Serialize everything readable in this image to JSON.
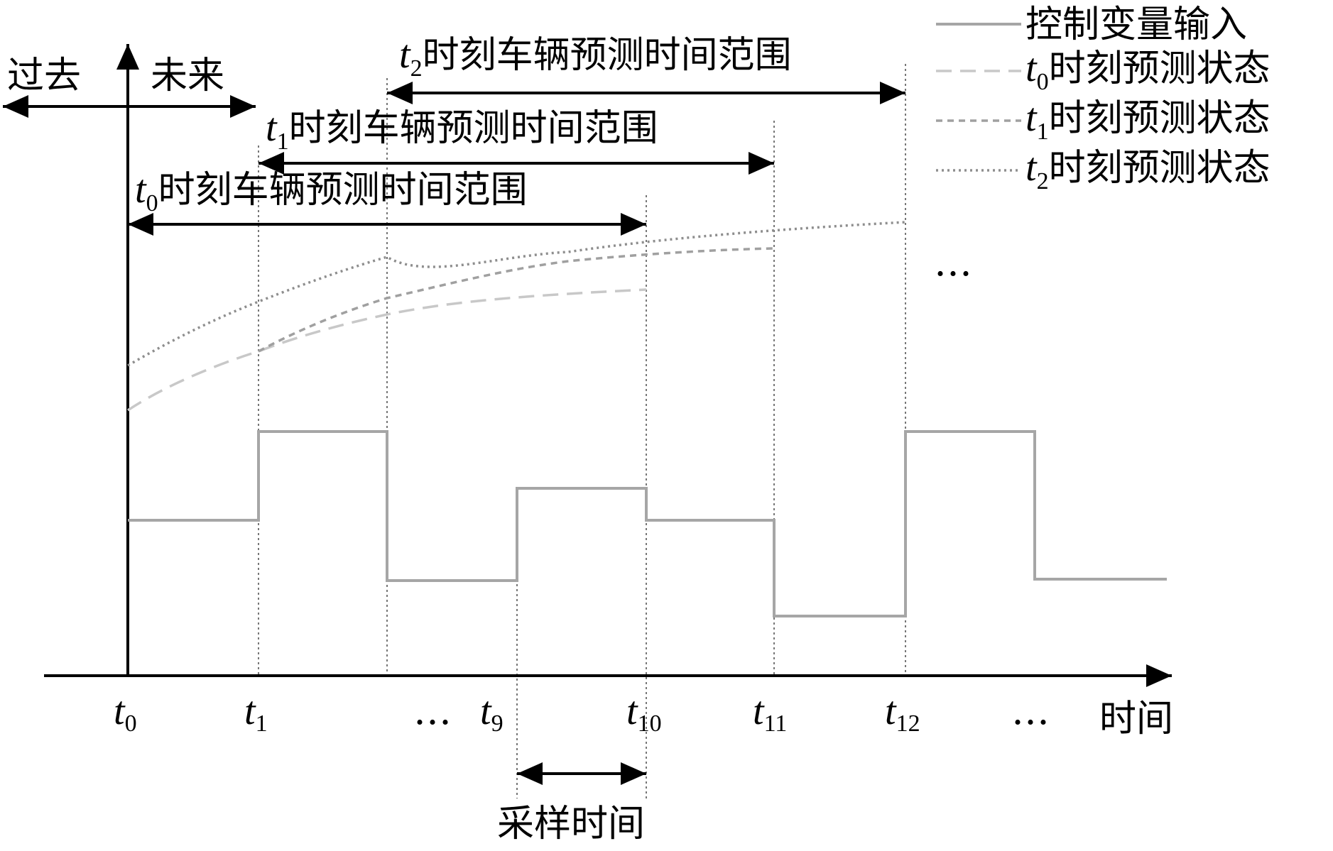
{
  "labels": {
    "past": "过去",
    "future": "未来",
    "time_axis": "时间",
    "sampling_time": "采样时间",
    "ellipsis": "…"
  },
  "ranges": [
    {
      "var": "t",
      "sub": "2",
      "text": "时刻车辆预测时间范围"
    },
    {
      "var": "t",
      "sub": "1",
      "text": "时刻车辆预测时间范围"
    },
    {
      "var": "t",
      "sub": "0",
      "text": "时刻车辆预测时间范围"
    }
  ],
  "ticks": [
    {
      "var": "t",
      "sub": "0"
    },
    {
      "var": "t",
      "sub": "1"
    },
    {
      "var": "t",
      "sub": "9"
    },
    {
      "var": "t",
      "sub": "10"
    },
    {
      "var": "t",
      "sub": "11"
    },
    {
      "var": "t",
      "sub": "12"
    }
  ],
  "legend": [
    {
      "text": "控制变量输入",
      "var": "",
      "sub": "",
      "color": "#a6a6a6",
      "style": "solid"
    },
    {
      "text": "时刻预测状态",
      "var": "t",
      "sub": "0",
      "color": "#c8c8c8",
      "style": "dashed"
    },
    {
      "text": "时刻预测状态",
      "var": "t",
      "sub": "1",
      "color": "#a0a0a0",
      "style": "short-dash"
    },
    {
      "text": "时刻预测状态",
      "var": "t",
      "sub": "2",
      "color": "#8e8e8e",
      "style": "dotted"
    }
  ],
  "colors": {
    "axis": "#000000",
    "control": "#a6a6a6",
    "pred_t0": "#c8c8c8",
    "pred_t1": "#a0a0a0",
    "pred_t2": "#8e8e8e",
    "gridline": "#555555"
  }
}
